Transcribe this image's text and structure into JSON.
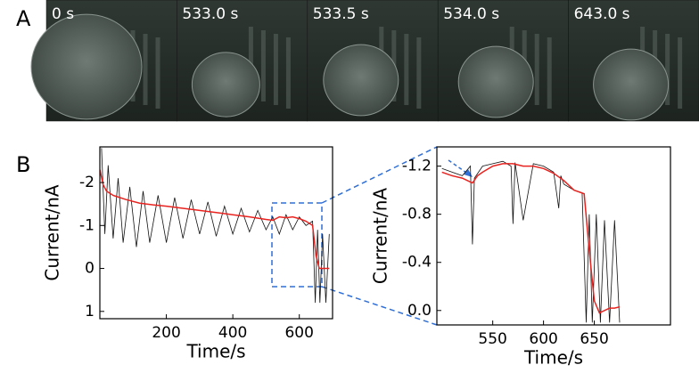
{
  "panel_a": {
    "label": "A",
    "frames": [
      "0 s",
      "533.0 s",
      "533.5 s",
      "534.0 s",
      "643.0 s"
    ]
  },
  "panel_b": {
    "label": "B"
  },
  "chart_data": [
    {
      "type": "line",
      "xlabel": "Time/s",
      "ylabel": "Current/nA",
      "xlim": [
        0,
        700
      ],
      "xticks": [
        200,
        400,
        600
      ],
      "ylim": [
        -2.83,
        1.17
      ],
      "yticks": [
        -2,
        -1,
        0,
        1
      ],
      "y_reversed": true,
      "series": [
        {
          "color": "#111111",
          "x": [
            5,
            15,
            25,
            40,
            55,
            70,
            90,
            110,
            130,
            150,
            175,
            200,
            225,
            250,
            275,
            300,
            325,
            350,
            375,
            400,
            425,
            450,
            475,
            500,
            520,
            540,
            560,
            580,
            600,
            620,
            640,
            648,
            655,
            662,
            670,
            680,
            690
          ],
          "values": [
            -2.8,
            -0.8,
            -2.4,
            -0.7,
            -2.1,
            -0.6,
            -1.9,
            -0.5,
            -1.8,
            -0.6,
            -1.7,
            -0.6,
            -1.65,
            -0.7,
            -1.6,
            -0.8,
            -1.55,
            -0.75,
            -1.45,
            -0.8,
            -1.4,
            -0.85,
            -1.35,
            -0.9,
            -1.2,
            -0.8,
            -1.25,
            -0.9,
            -1.2,
            -1.0,
            -1.1,
            0.8,
            -0.9,
            0.8,
            -0.8,
            0.8,
            -0.8
          ]
        },
        {
          "color": "#e8231f",
          "x": [
            0,
            10,
            20,
            40,
            80,
            120,
            160,
            200,
            250,
            300,
            350,
            400,
            450,
            500,
            520,
            540,
            560,
            580,
            600,
            620,
            640,
            650,
            660,
            670,
            690
          ],
          "values": [
            -2.3,
            -1.95,
            -1.8,
            -1.7,
            -1.6,
            -1.52,
            -1.48,
            -1.45,
            -1.4,
            -1.35,
            -1.3,
            -1.25,
            -1.2,
            -1.14,
            -1.12,
            -1.2,
            -1.18,
            -1.2,
            -1.16,
            -1.1,
            -1.0,
            -0.3,
            0,
            0,
            0
          ]
        }
      ]
    },
    {
      "type": "line",
      "xlabel": "Time/s",
      "ylabel": "Current/nA",
      "xlim": [
        495,
        725
      ],
      "xticks": [
        550,
        600,
        650
      ],
      "ylim": [
        -1.36,
        0.12
      ],
      "yticks": [
        -1.2,
        -0.8,
        -0.4,
        {
          "value": 0,
          "label": "0.0"
        }
      ],
      "y_reversed": true,
      "series": [
        {
          "color": "#111111",
          "x": [
            500,
            510,
            520,
            528,
            530,
            532,
            540,
            550,
            560,
            568,
            570,
            572,
            580,
            590,
            600,
            610,
            615,
            617,
            620,
            630,
            638,
            642,
            645,
            648,
            652,
            656,
            660,
            665,
            670,
            675
          ],
          "values": [
            -1.18,
            -1.15,
            -1.12,
            -1.2,
            -0.55,
            -1.1,
            -1.2,
            -1.22,
            -1.24,
            -1.2,
            -0.72,
            -1.23,
            -0.75,
            -1.22,
            -1.2,
            -1.15,
            -0.85,
            -1.12,
            -1.05,
            -1.0,
            -0.98,
            0.1,
            -0.8,
            0.1,
            -0.8,
            0.1,
            -0.75,
            0.1,
            -0.75,
            0.1
          ]
        },
        {
          "color": "#e8231f",
          "x": [
            500,
            510,
            520,
            530,
            535,
            540,
            550,
            560,
            570,
            580,
            590,
            600,
            610,
            620,
            630,
            640,
            645,
            650,
            655,
            660,
            665,
            670,
            675
          ],
          "values": [
            -1.15,
            -1.12,
            -1.1,
            -1.06,
            -1.12,
            -1.15,
            -1.2,
            -1.22,
            -1.22,
            -1.2,
            -1.2,
            -1.18,
            -1.14,
            -1.08,
            -1.0,
            -0.97,
            -0.5,
            -0.08,
            0.02,
            0,
            -0.02,
            -0.02,
            -0.03
          ]
        }
      ]
    }
  ]
}
